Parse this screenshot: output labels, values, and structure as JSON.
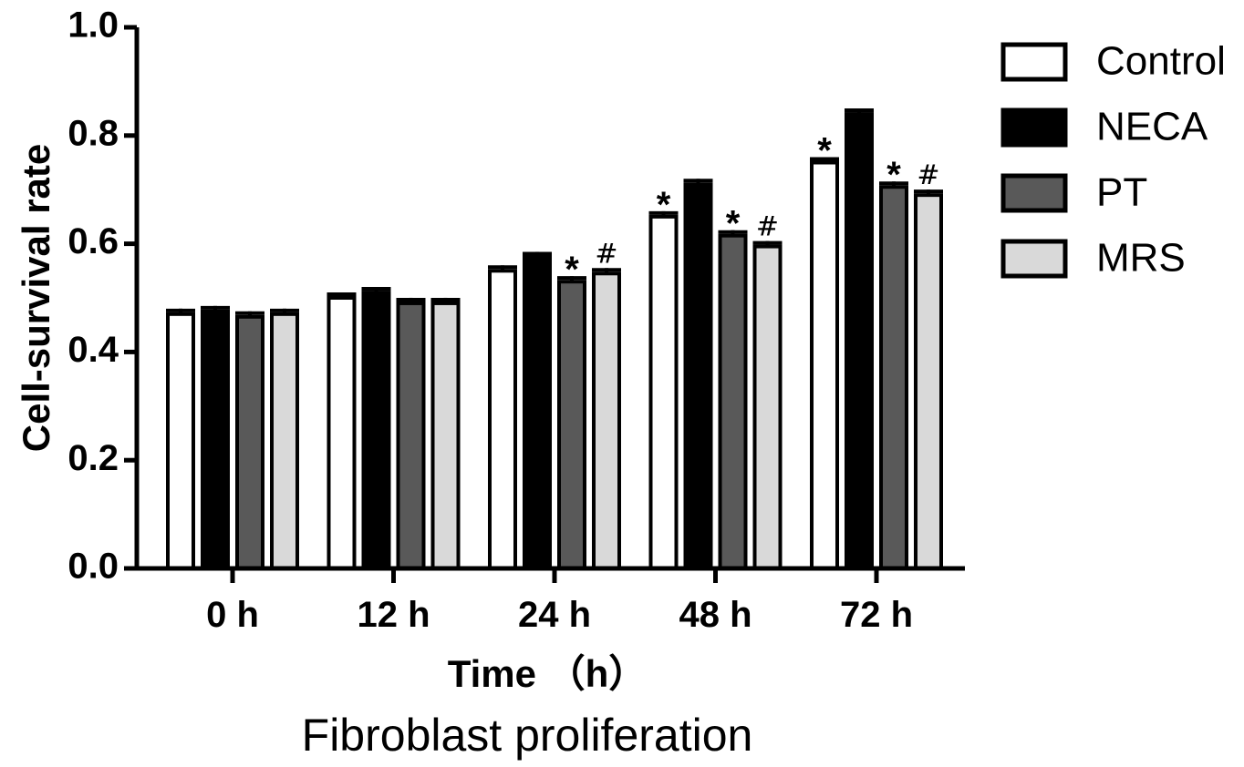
{
  "chart_data": {
    "type": "bar",
    "title": "",
    "ylabel": "Cell-survival rate",
    "xlabel": "Time （h）",
    "caption": "Fibroblast proliferation",
    "ylim": [
      0,
      1.0
    ],
    "yticks": [
      "0.0",
      "0.2",
      "0.4",
      "0.6",
      "0.8",
      "1.0"
    ],
    "categories": [
      "0 h",
      "12 h",
      "24 h",
      "48 h",
      "72 h"
    ],
    "series": [
      {
        "name": "Control",
        "color": "#ffffff",
        "values": [
          0.47,
          0.5,
          0.55,
          0.65,
          0.75
        ],
        "markers": [
          "",
          "",
          "",
          "*",
          "*"
        ]
      },
      {
        "name": "NECA",
        "color": "#000000",
        "values": [
          0.475,
          0.51,
          0.575,
          0.71,
          0.84
        ],
        "markers": [
          "",
          "",
          "",
          "",
          ""
        ]
      },
      {
        "name": "PT",
        "color": "#595959",
        "values": [
          0.465,
          0.49,
          0.53,
          0.615,
          0.705
        ],
        "markers": [
          "",
          "",
          "*",
          "*",
          "*"
        ]
      },
      {
        "name": "MRS",
        "color": "#d9d9d9",
        "values": [
          0.47,
          0.49,
          0.545,
          0.595,
          0.69
        ],
        "markers": [
          "",
          "",
          "#",
          "#",
          "#"
        ]
      }
    ],
    "legend_position": "top-right",
    "grid": false
  }
}
